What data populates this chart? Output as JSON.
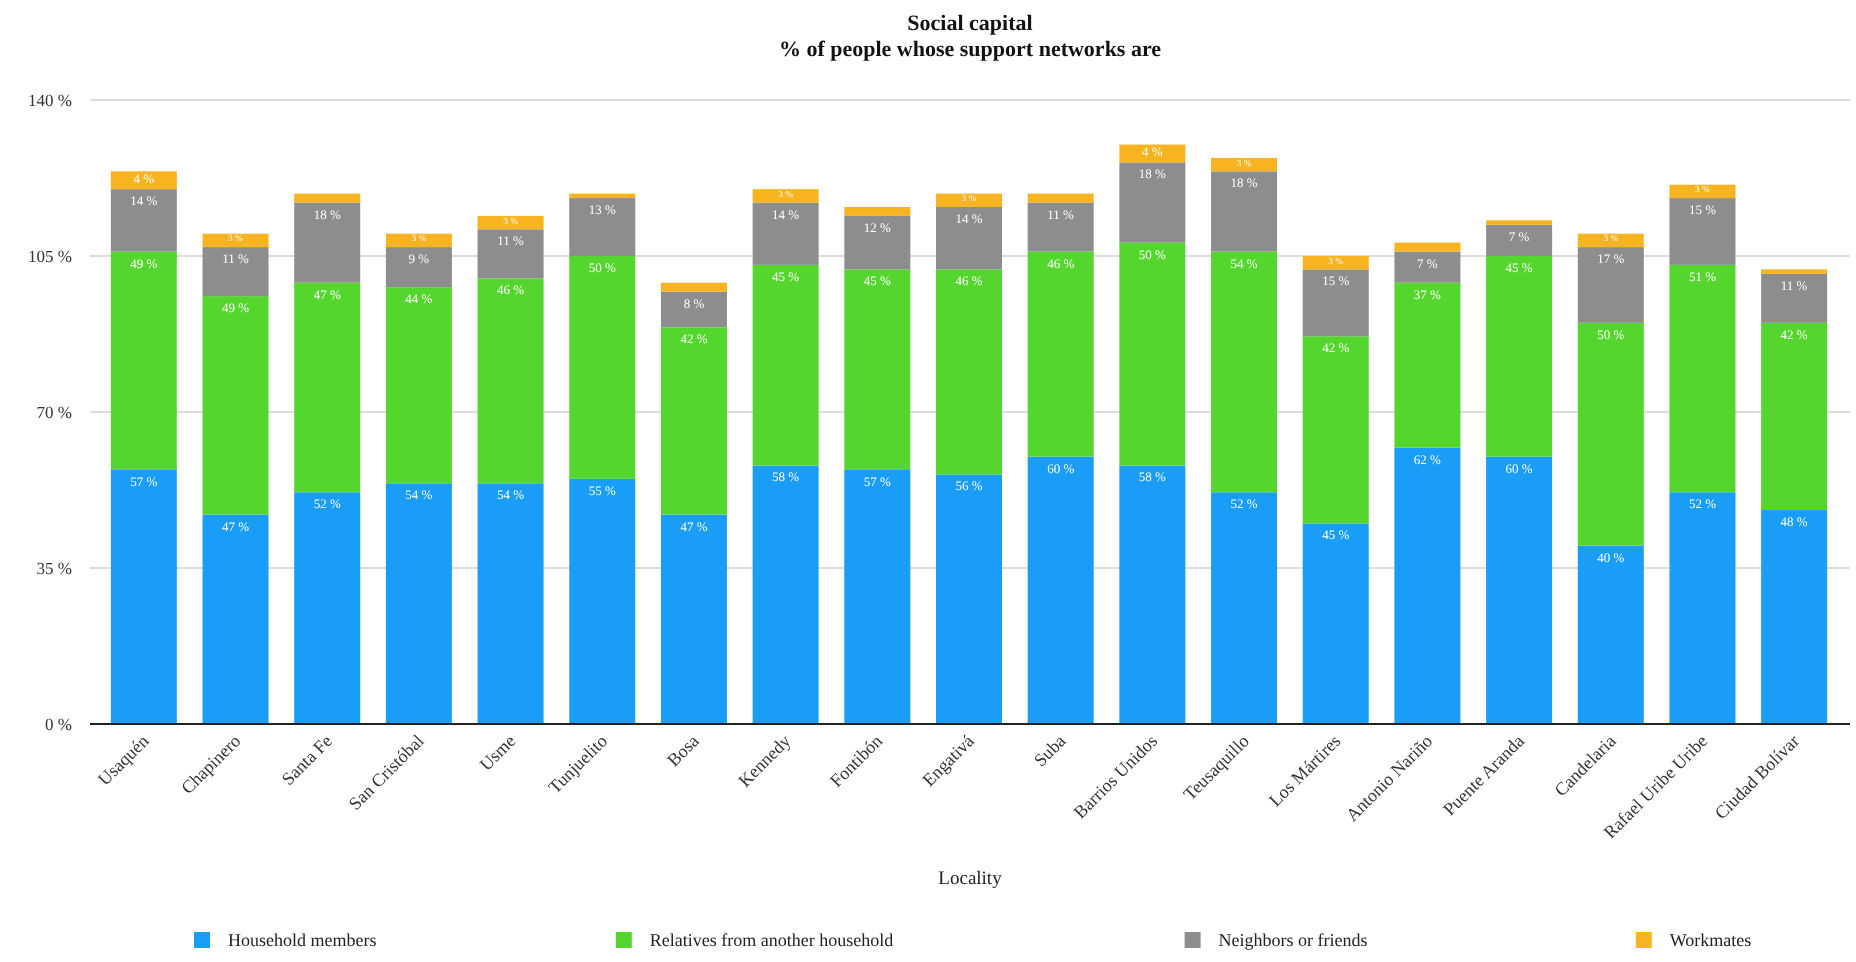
{
  "chart_data": {
    "type": "bar",
    "title": "Social capital",
    "subtitle": "% of people whose support networks are",
    "xlabel": "Locality",
    "categories": [
      "Usaquén",
      "Chapinero",
      "Santa Fe",
      "San Cristóbal",
      "Usme",
      "Tunjuelito",
      "Bosa",
      "Kennedy",
      "Fontibón",
      "Engativá",
      "Suba",
      "Barrios Unidos",
      "Teusaquillo",
      "Los Mártires",
      "Antonio Nariño",
      "Puente Aranda",
      "Candelaria",
      "Rafael Uribe Uribe",
      "Ciudad Bolívar"
    ],
    "series": [
      {
        "name": "Household members",
        "color": "#199df7",
        "values": [
          57,
          47,
          52,
          54,
          54,
          55,
          47,
          58,
          57,
          56,
          60,
          58,
          52,
          45,
          62,
          60,
          40,
          52,
          48
        ],
        "value_labels": [
          "57 %",
          "47 %",
          "52 %",
          "54 %",
          "54 %",
          "55 %",
          "47 %",
          "58 %",
          "57 %",
          "56 %",
          "60 %",
          "58 %",
          "52 %",
          "45 %",
          "62 %",
          "60 %",
          "40 %",
          "52 %",
          "48 %"
        ]
      },
      {
        "name": "Relatives from another household",
        "color": "#55d62f",
        "values": [
          49,
          49,
          47,
          44,
          46,
          50,
          42,
          45,
          45,
          46,
          46,
          50,
          54,
          42,
          37,
          45,
          50,
          51,
          42
        ],
        "value_labels": [
          "49 %",
          "49 %",
          "47 %",
          "44 %",
          "46 %",
          "50 %",
          "42 %",
          "45 %",
          "45 %",
          "46 %",
          "46 %",
          "50 %",
          "54 %",
          "42 %",
          "37 %",
          "45 %",
          "50 %",
          "51 %",
          "42 %"
        ]
      },
      {
        "name": "Neighbors or friends",
        "color": "#8d8d8d",
        "values": [
          14,
          11,
          18,
          9,
          11,
          13,
          8,
          14,
          12,
          14,
          11,
          18,
          18,
          15,
          7,
          7,
          17,
          15,
          11
        ],
        "value_labels": [
          "14 %",
          "11 %",
          "18 %",
          "9 %",
          "11 %",
          "13 %",
          "8 %",
          "14 %",
          "12 %",
          "14 %",
          "11 %",
          "18 %",
          "18 %",
          "15 %",
          "7 %",
          "7 %",
          "17 %",
          "15 %",
          "11 %"
        ]
      },
      {
        "name": "Workmates",
        "color": "#f7b320",
        "values": [
          4,
          3,
          2,
          3,
          3,
          1,
          2,
          3,
          2,
          3,
          2,
          4,
          3,
          3,
          2,
          1,
          3,
          3,
          1
        ],
        "value_labels": [
          "4 %",
          "3 %",
          null,
          "3 %",
          "3 %",
          null,
          null,
          "3 %",
          null,
          "3 %",
          null,
          "4 %",
          "3 %",
          "3 %",
          null,
          null,
          "3 %",
          "3 %",
          null
        ]
      }
    ],
    "stacked": true,
    "ylim": [
      0,
      140
    ],
    "yticks": [
      {
        "value": 0,
        "label": "0 %"
      },
      {
        "value": 35,
        "label": "35 %"
      },
      {
        "value": 70,
        "label": "70 %"
      },
      {
        "value": 105,
        "label": "105 %"
      },
      {
        "value": 140,
        "label": "140 %"
      }
    ],
    "grid": "y",
    "legend": "bottom"
  }
}
